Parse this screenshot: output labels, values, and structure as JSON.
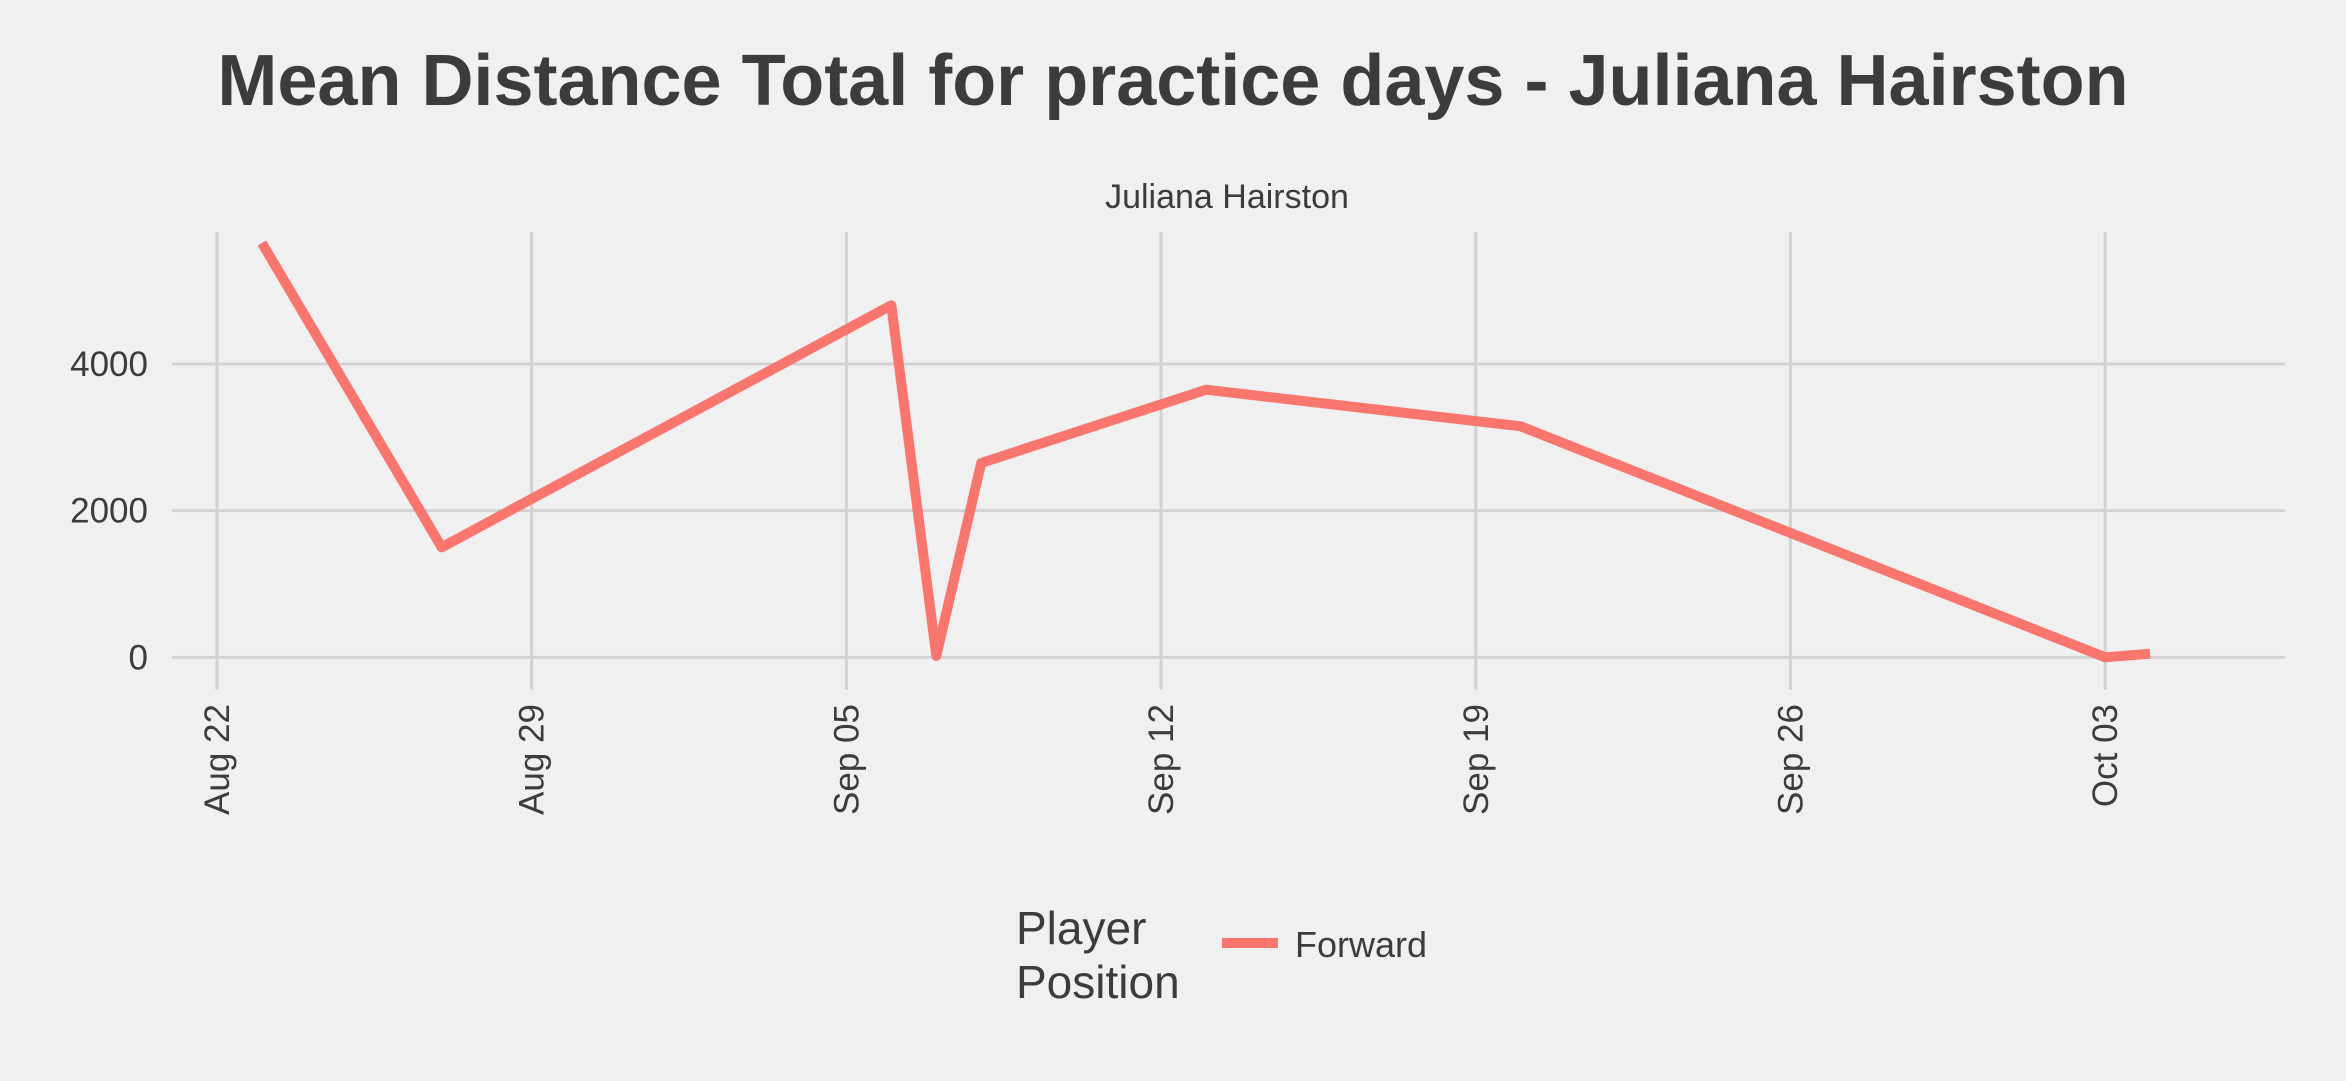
{
  "chart_data": {
    "type": "line",
    "title": "Mean Distance Total for practice days -  Juliana Hairston",
    "facet_label": "Juliana Hairston",
    "xlabel": "",
    "ylabel": "",
    "x_axis": {
      "type": "date",
      "range": [
        "2023-08-21",
        "2023-10-07"
      ],
      "ticks": [
        "2023-08-22",
        "2023-08-29",
        "2023-09-05",
        "2023-09-12",
        "2023-09-19",
        "2023-09-26",
        "2023-10-03"
      ],
      "tick_labels": [
        "Aug 22",
        "Aug 29",
        "Sep 05",
        "Sep 12",
        "Sep 19",
        "Sep 26",
        "Oct 03"
      ]
    },
    "y_axis": {
      "range": [
        -200,
        5800
      ],
      "ticks": [
        0,
        2000,
        4000
      ],
      "tick_labels": [
        "0",
        "2000",
        "4000"
      ]
    },
    "grid": true,
    "legend": {
      "position": "bottom",
      "title_lines": [
        "Player",
        "Position"
      ]
    },
    "series": [
      {
        "name": "Forward",
        "color": "#f8766d",
        "x": [
          "2023-08-23",
          "2023-08-27",
          "2023-09-06",
          "2023-09-07",
          "2023-09-08",
          "2023-09-13",
          "2023-09-20",
          "2023-10-03",
          "2023-10-04"
        ],
        "values": [
          5650,
          1500,
          4800,
          20,
          2650,
          3650,
          3150,
          0,
          50
        ]
      }
    ]
  }
}
